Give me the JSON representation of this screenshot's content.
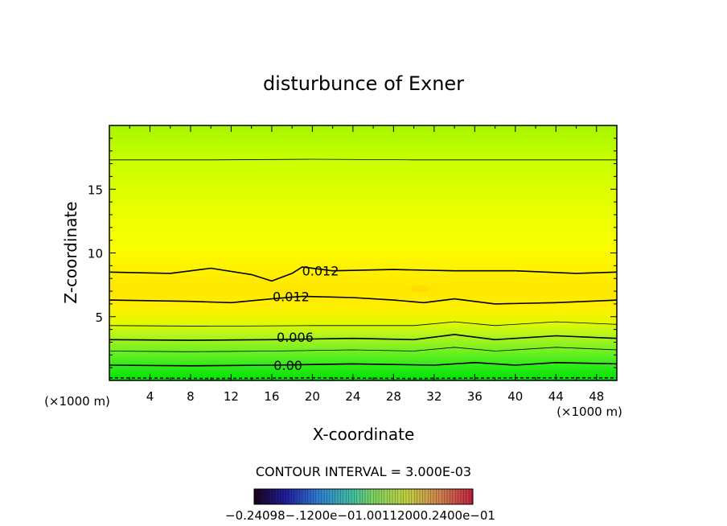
{
  "chart_data": {
    "type": "contour",
    "title": "disturbunce of Exner",
    "xlabel": "X-coordinate",
    "ylabel": "Z-coordinate",
    "x_unit_left": "(×1000 m)",
    "x_unit_right": "(×1000 m)",
    "xlim": [
      0,
      50
    ],
    "ylim": [
      0,
      20
    ],
    "x_ticks": [
      "4",
      "8",
      "12",
      "16",
      "20",
      "24",
      "28",
      "32",
      "36",
      "40",
      "44",
      "48"
    ],
    "x_tick_values": [
      4,
      8,
      12,
      16,
      20,
      24,
      28,
      32,
      36,
      40,
      44,
      48
    ],
    "y_ticks": [
      "5",
      "10",
      "15"
    ],
    "y_tick_values": [
      5,
      10,
      15
    ],
    "contour_labels": [
      {
        "text": "0.012",
        "x": 20.8,
        "y": 8.6
      },
      {
        "text": "0.012",
        "x": 17.9,
        "y": 6.6
      },
      {
        "text": "0.006",
        "x": 18.3,
        "y": 3.4
      },
      {
        "text": "0.00",
        "x": 17.6,
        "y": 1.2
      }
    ],
    "contour_lines": [
      {
        "level": "major",
        "points": [
          [
            0,
            0.2
          ],
          [
            10,
            0.15
          ],
          [
            20,
            0.2
          ],
          [
            30,
            0.15
          ],
          [
            40,
            0.2
          ],
          [
            50,
            0.2
          ]
        ],
        "dashed": true
      },
      {
        "level": "major",
        "points": [
          [
            0,
            1.2
          ],
          [
            8,
            1.15
          ],
          [
            16,
            1.2
          ],
          [
            24,
            1.3
          ],
          [
            32,
            1.2
          ],
          [
            36,
            1.4
          ],
          [
            40,
            1.2
          ],
          [
            44,
            1.4
          ],
          [
            50,
            1.3
          ]
        ]
      },
      {
        "level": "minor",
        "points": [
          [
            0,
            2.3
          ],
          [
            8,
            2.25
          ],
          [
            16,
            2.3
          ],
          [
            24,
            2.4
          ],
          [
            30,
            2.3
          ],
          [
            34,
            2.6
          ],
          [
            38,
            2.3
          ],
          [
            44,
            2.6
          ],
          [
            50,
            2.4
          ]
        ]
      },
      {
        "level": "major",
        "points": [
          [
            0,
            3.2
          ],
          [
            8,
            3.15
          ],
          [
            16,
            3.2
          ],
          [
            24,
            3.3
          ],
          [
            30,
            3.2
          ],
          [
            34,
            3.6
          ],
          [
            38,
            3.2
          ],
          [
            44,
            3.5
          ],
          [
            50,
            3.3
          ]
        ]
      },
      {
        "level": "minor",
        "points": [
          [
            0,
            4.3
          ],
          [
            10,
            4.25
          ],
          [
            20,
            4.3
          ],
          [
            30,
            4.3
          ],
          [
            34,
            4.6
          ],
          [
            38,
            4.3
          ],
          [
            44,
            4.6
          ],
          [
            50,
            4.4
          ]
        ]
      },
      {
        "level": "major",
        "points": [
          [
            0,
            6.3
          ],
          [
            8,
            6.2
          ],
          [
            12,
            6.1
          ],
          [
            16,
            6.4
          ],
          [
            19,
            6.6
          ],
          [
            24,
            6.5
          ],
          [
            28,
            6.3
          ],
          [
            31,
            6.1
          ],
          [
            34,
            6.4
          ],
          [
            38,
            6.0
          ],
          [
            44,
            6.1
          ],
          [
            50,
            6.3
          ]
        ]
      },
      {
        "level": "major",
        "points": [
          [
            0,
            8.5
          ],
          [
            6,
            8.4
          ],
          [
            10,
            8.8
          ],
          [
            14,
            8.3
          ],
          [
            16,
            7.8
          ],
          [
            17,
            8.1
          ],
          [
            18,
            8.4
          ],
          [
            19,
            8.9
          ],
          [
            22,
            8.6
          ],
          [
            28,
            8.7
          ],
          [
            34,
            8.6
          ],
          [
            40,
            8.6
          ],
          [
            46,
            8.4
          ],
          [
            50,
            8.5
          ]
        ]
      },
      {
        "level": "minor",
        "points": [
          [
            0,
            17.3
          ],
          [
            10,
            17.3
          ],
          [
            20,
            17.35
          ],
          [
            30,
            17.3
          ],
          [
            40,
            17.3
          ],
          [
            50,
            17.3
          ]
        ]
      }
    ],
    "contour_interval_label": "CONTOUR INTERVAL = 3.000E-03",
    "colorbar_tick_labels_text": "−0.24098−.1200e−01.00112000.2400e−01"
  }
}
